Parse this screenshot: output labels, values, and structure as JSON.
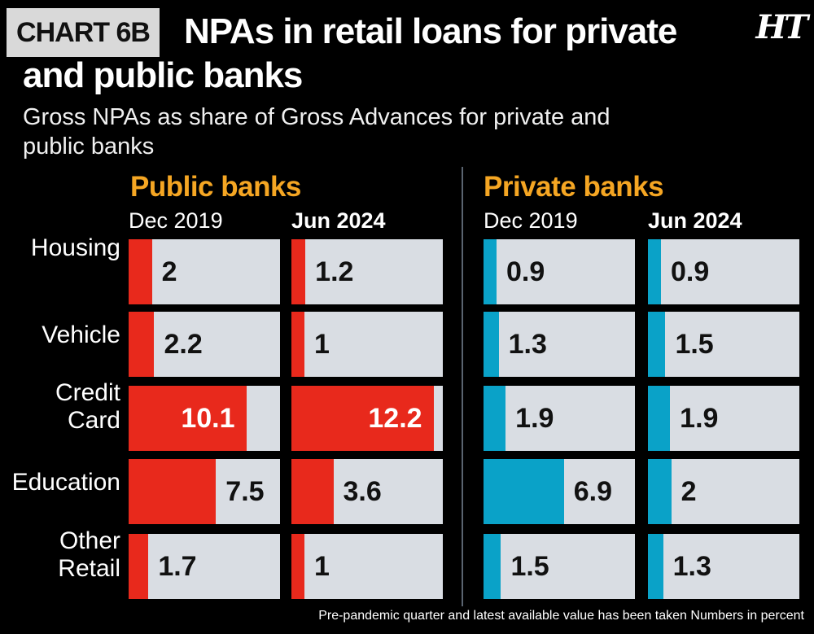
{
  "header": {
    "tag": "CHART 6B",
    "title": "NPAs in retail loans for private and public banks",
    "subtitle": "Gross NPAs as share of Gross Advances for private and public banks",
    "logo": "HT"
  },
  "footer": "Pre-pandemic quarter and latest available value has been taken Numbers in percent",
  "colors": {
    "public": "#e8291c",
    "private": "#0aa2c8",
    "track": "#d9dde3",
    "group_title": "#f5a623"
  },
  "chart_data": {
    "type": "bar",
    "unit": "percent",
    "scale_max": 13,
    "categories": [
      "Housing",
      "Vehicle",
      "Credit Card",
      "Education",
      "Other Retail"
    ],
    "category_lines": [
      [
        "Housing"
      ],
      [
        "Vehicle"
      ],
      [
        "Credit",
        "Card"
      ],
      [
        "Education"
      ],
      [
        "Other",
        "Retail"
      ]
    ],
    "groups": [
      {
        "name": "Public banks",
        "series": [
          {
            "name": "Dec 2019",
            "values": [
              2,
              2.2,
              10.1,
              7.5,
              1.7
            ]
          },
          {
            "name": "Jun 2024",
            "values": [
              1.2,
              1,
              12.2,
              3.6,
              1
            ]
          }
        ]
      },
      {
        "name": "Private banks",
        "series": [
          {
            "name": "Dec 2019",
            "values": [
              0.9,
              1.3,
              1.9,
              6.9,
              1.5
            ]
          },
          {
            "name": "Jun 2024",
            "values": [
              0.9,
              1.5,
              1.9,
              2,
              1.3
            ]
          }
        ]
      }
    ]
  }
}
